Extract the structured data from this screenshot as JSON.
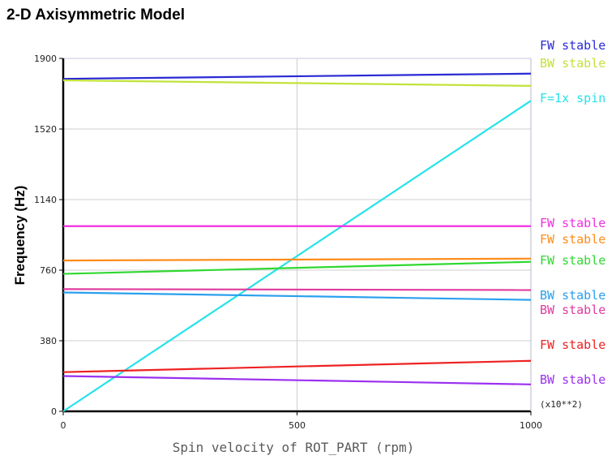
{
  "chart_data": {
    "type": "line",
    "title": "2-D Axisymmetric Model",
    "xlabel": "Spin velocity of ROT_PART (rpm)",
    "ylabel": "Frequency (Hz)",
    "x_scale_note": "(x10**2)",
    "xlim": [
      0,
      1000
    ],
    "ylim": [
      0,
      1900
    ],
    "x_ticks": [
      "0",
      "500",
      "1000"
    ],
    "y_ticks": [
      "0",
      "380",
      "760",
      "1140",
      "1520",
      "1900"
    ],
    "x_tick_values": [
      0,
      500,
      1000
    ],
    "y_tick_values": [
      0,
      380,
      760,
      1140,
      1520,
      1900
    ],
    "grid": true,
    "legend_position": "right",
    "x": [
      0,
      1000
    ],
    "series": [
      {
        "name": "FW stable",
        "color": "#2a2ad4",
        "values": [
          1790,
          1818
        ]
      },
      {
        "name": "BW stable",
        "color": "#c2e23c",
        "values": [
          1782,
          1752
        ]
      },
      {
        "name": "F=1x spin",
        "color": "#26e2ea",
        "values": [
          0,
          1672
        ]
      },
      {
        "name": "FW stable",
        "color": "#f030e0",
        "values": [
          997,
          997
        ]
      },
      {
        "name": "FW stable",
        "color": "#ff8c1a",
        "values": [
          812,
          822
        ]
      },
      {
        "name": "FW stable",
        "color": "#30d830",
        "values": [
          740,
          805
        ]
      },
      {
        "name": "BW stable",
        "color": "#2aa0ee",
        "values": [
          640,
          600
        ]
      },
      {
        "name": "BW stable",
        "color": "#e03a9e",
        "values": [
          658,
          653
        ]
      },
      {
        "name": "FW stable",
        "color": "#ee2222",
        "values": [
          211,
          272
        ]
      },
      {
        "name": "BW stable",
        "color": "#9b30f0",
        "values": [
          190,
          145
        ]
      }
    ]
  }
}
